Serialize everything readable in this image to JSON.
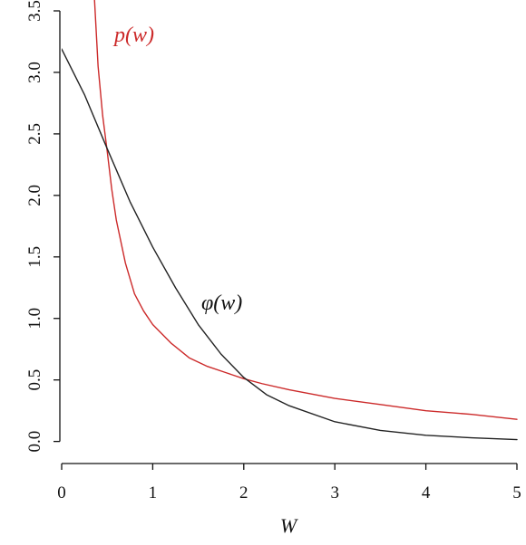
{
  "chart_data": {
    "type": "line",
    "title": "",
    "xlabel": "W",
    "ylabel": "",
    "xlim": [
      0,
      5
    ],
    "ylim": [
      -0.15,
      3.5
    ],
    "xticks": [
      0,
      1,
      2,
      3,
      4,
      5
    ],
    "yticks": [
      0.0,
      0.5,
      1.0,
      1.5,
      2.0,
      2.5,
      3.0,
      3.5
    ],
    "xtick_labels": [
      "0",
      "1",
      "2",
      "3",
      "4",
      "5"
    ],
    "ytick_labels": [
      "0.0",
      "0.5",
      "1.0",
      "1.5",
      "2.0",
      "2.5",
      "3.0",
      "3.5"
    ],
    "grid": false,
    "legend": "none",
    "series": [
      {
        "name": "p(w)",
        "color": "#cc2a2a",
        "x": [
          0.36,
          0.4,
          0.45,
          0.5,
          0.55,
          0.6,
          0.7,
          0.8,
          0.9,
          1.0,
          1.2,
          1.4,
          1.6,
          1.8,
          2.0,
          2.2,
          2.5,
          3.0,
          3.5,
          4.0,
          4.5,
          5.0
        ],
        "y": [
          3.6,
          3.05,
          2.65,
          2.36,
          2.05,
          1.8,
          1.45,
          1.2,
          1.06,
          0.95,
          0.8,
          0.68,
          0.61,
          0.56,
          0.51,
          0.47,
          0.42,
          0.35,
          0.3,
          0.25,
          0.22,
          0.18
        ]
      },
      {
        "name": "φ(w)",
        "color": "#222222",
        "x": [
          0.0,
          0.25,
          0.5,
          0.75,
          1.0,
          1.25,
          1.5,
          1.75,
          2.0,
          2.25,
          2.5,
          3.0,
          3.5,
          4.0,
          4.5,
          5.0
        ],
        "y": [
          3.19,
          2.82,
          2.38,
          1.95,
          1.58,
          1.25,
          0.95,
          0.71,
          0.52,
          0.38,
          0.29,
          0.16,
          0.09,
          0.05,
          0.03,
          0.015
        ]
      }
    ]
  }
}
